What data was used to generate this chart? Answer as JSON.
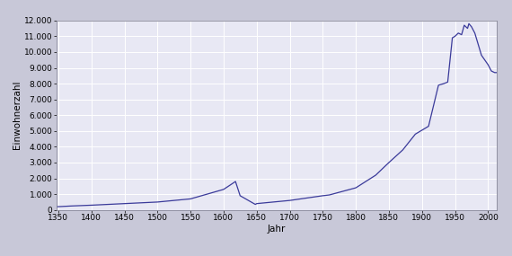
{
  "years": [
    1347,
    1370,
    1400,
    1450,
    1500,
    1550,
    1600,
    1618,
    1625,
    1648,
    1650,
    1700,
    1750,
    1760,
    1800,
    1830,
    1850,
    1871,
    1890,
    1910,
    1925,
    1933,
    1939,
    1946,
    1950,
    1955,
    1960,
    1964,
    1969,
    1971,
    1975,
    1980,
    1985,
    1990,
    1995,
    2000,
    2005,
    2010,
    2013
  ],
  "population": [
    200,
    250,
    300,
    400,
    500,
    700,
    1300,
    1800,
    900,
    350,
    400,
    600,
    900,
    950,
    1400,
    2200,
    3000,
    3800,
    4800,
    5300,
    7900,
    8000,
    8100,
    10900,
    11000,
    11200,
    11100,
    11700,
    11500,
    11800,
    11600,
    11200,
    10500,
    9800,
    9500,
    9200,
    8800,
    8700,
    8700
  ],
  "line_color": "#3a3a9a",
  "bg_color": "#c8c8d8",
  "plot_bg_color": "#e8e8f4",
  "grid_color": "#ffffff",
  "xlabel": "Jahr",
  "ylabel": "Einwohnerzahl",
  "xlim": [
    1347,
    2013
  ],
  "ylim": [
    0,
    12000
  ],
  "yticks": [
    0,
    1000,
    2000,
    3000,
    4000,
    5000,
    6000,
    7000,
    8000,
    9000,
    10000,
    11000,
    12000
  ],
  "xticks": [
    1350,
    1400,
    1450,
    1500,
    1550,
    1600,
    1650,
    1700,
    1750,
    1800,
    1850,
    1900,
    1950,
    2000
  ],
  "label_fontsize": 7.5,
  "tick_fontsize": 6.5
}
